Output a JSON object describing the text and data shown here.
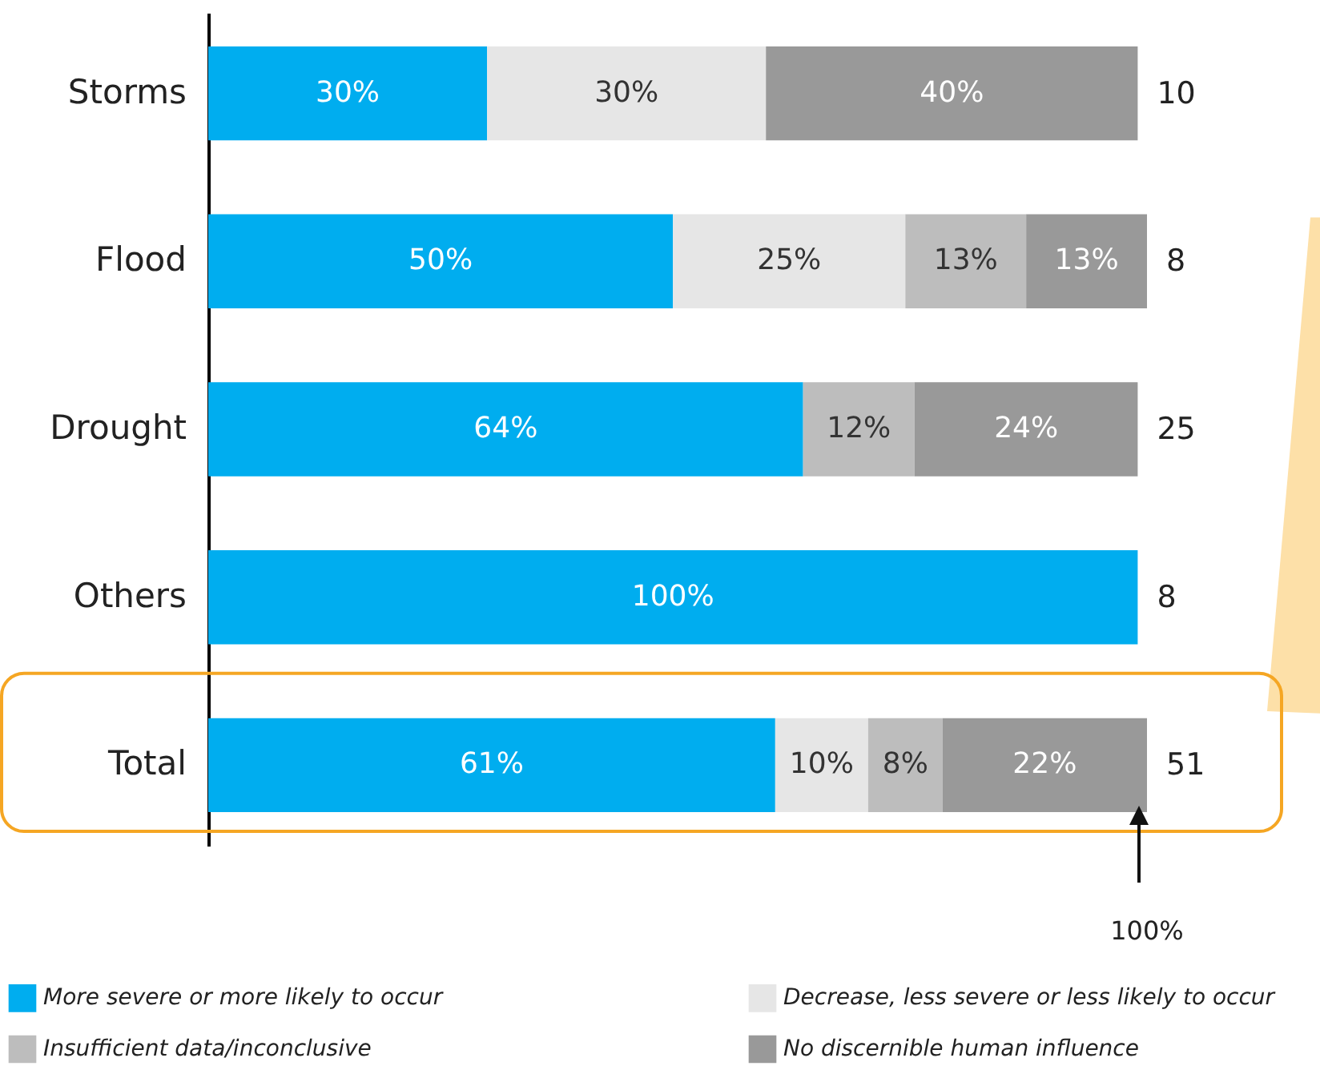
{
  "chart_data": {
    "type": "bar",
    "orientation": "horizontal",
    "stacked": true,
    "categories": [
      "Storms",
      "Flood",
      "Drought",
      "Others",
      "Total"
    ],
    "series": [
      {
        "name": "More severe or more likely to occur",
        "color": "#00adef",
        "values": [
          30,
          50,
          64,
          100,
          61
        ],
        "value_labels": [
          "30%",
          "50%",
          "64%",
          "100%",
          "61%"
        ]
      },
      {
        "name": "Decrease, less severe or less likely to occur",
        "color": "#e6e6e6",
        "values": [
          30,
          25,
          0,
          0,
          10
        ],
        "value_labels": [
          "30%",
          "25%",
          null,
          null,
          "10%"
        ]
      },
      {
        "name": "Insufficient data/inconclusive",
        "color": "#bdbdbd",
        "values": [
          0,
          13,
          12,
          0,
          8
        ],
        "value_labels": [
          null,
          "13%",
          "12%",
          null,
          "8%"
        ]
      },
      {
        "name": "No discernible human influence",
        "color": "#999999",
        "values": [
          40,
          13,
          24,
          0,
          22
        ],
        "value_labels": [
          "40%",
          "13%",
          "24%",
          null,
          "22%"
        ]
      }
    ],
    "annotations": [
      "10",
      "8",
      "25",
      "8",
      "51",
      "100%"
    ],
    "legend": "bottom"
  }
}
